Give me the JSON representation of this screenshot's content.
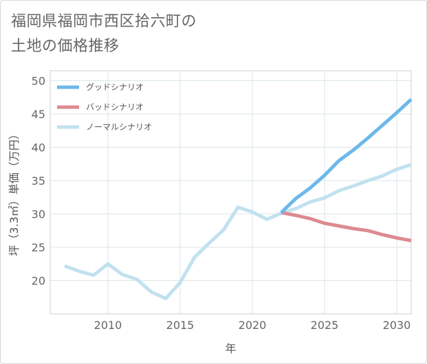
{
  "page": {
    "title_line1": "福岡県福岡市西区拾六町の",
    "title_line2": "土地の価格推移"
  },
  "chart_data": {
    "type": "line",
    "title": "福岡県福岡市西区拾六町の土地の価格推移",
    "xlabel": "年",
    "ylabel": "坪（3.3㎡）単価（万円）",
    "xlim": [
      2006,
      2031
    ],
    "ylim": [
      15,
      51.5
    ],
    "xticks": [
      2010,
      2015,
      2020,
      2025,
      2030
    ],
    "yticks": [
      20,
      25,
      30,
      35,
      40,
      45,
      50
    ],
    "grid": true,
    "legend_position": "top-left",
    "series": [
      {
        "name": "グッドシナリオ",
        "color": "#6cb8ea",
        "x": [
          2022,
          2023,
          2024,
          2025,
          2026,
          2027,
          2028,
          2029,
          2030,
          2031
        ],
        "values": [
          30.2,
          32.3,
          33.9,
          35.8,
          38.0,
          39.6,
          41.4,
          43.3,
          45.2,
          47.2
        ]
      },
      {
        "name": "バッドシナリオ",
        "color": "#dc8a91",
        "x": [
          2022,
          2023,
          2024,
          2025,
          2026,
          2027,
          2028,
          2029,
          2030,
          2031
        ],
        "values": [
          30.2,
          29.8,
          29.3,
          28.6,
          28.2,
          27.8,
          27.5,
          26.9,
          26.4,
          26.0
        ]
      },
      {
        "name": "ノーマルシナリオ",
        "color": "#c2e1ef",
        "x": [
          2007,
          2008,
          2009,
          2010,
          2011,
          2012,
          2013,
          2014,
          2015,
          2016,
          2017,
          2018,
          2019,
          2020,
          2021,
          2022,
          2023,
          2024,
          2025,
          2026,
          2027,
          2028,
          2029,
          2030,
          2031
        ],
        "values": [
          22.2,
          21.4,
          20.8,
          22.5,
          20.9,
          20.2,
          18.3,
          17.3,
          19.7,
          23.5,
          25.6,
          27.6,
          31.0,
          30.3,
          29.2,
          30.1,
          30.8,
          31.8,
          32.4,
          33.5,
          34.2,
          35.0,
          35.7,
          36.7,
          37.4
        ]
      }
    ]
  }
}
